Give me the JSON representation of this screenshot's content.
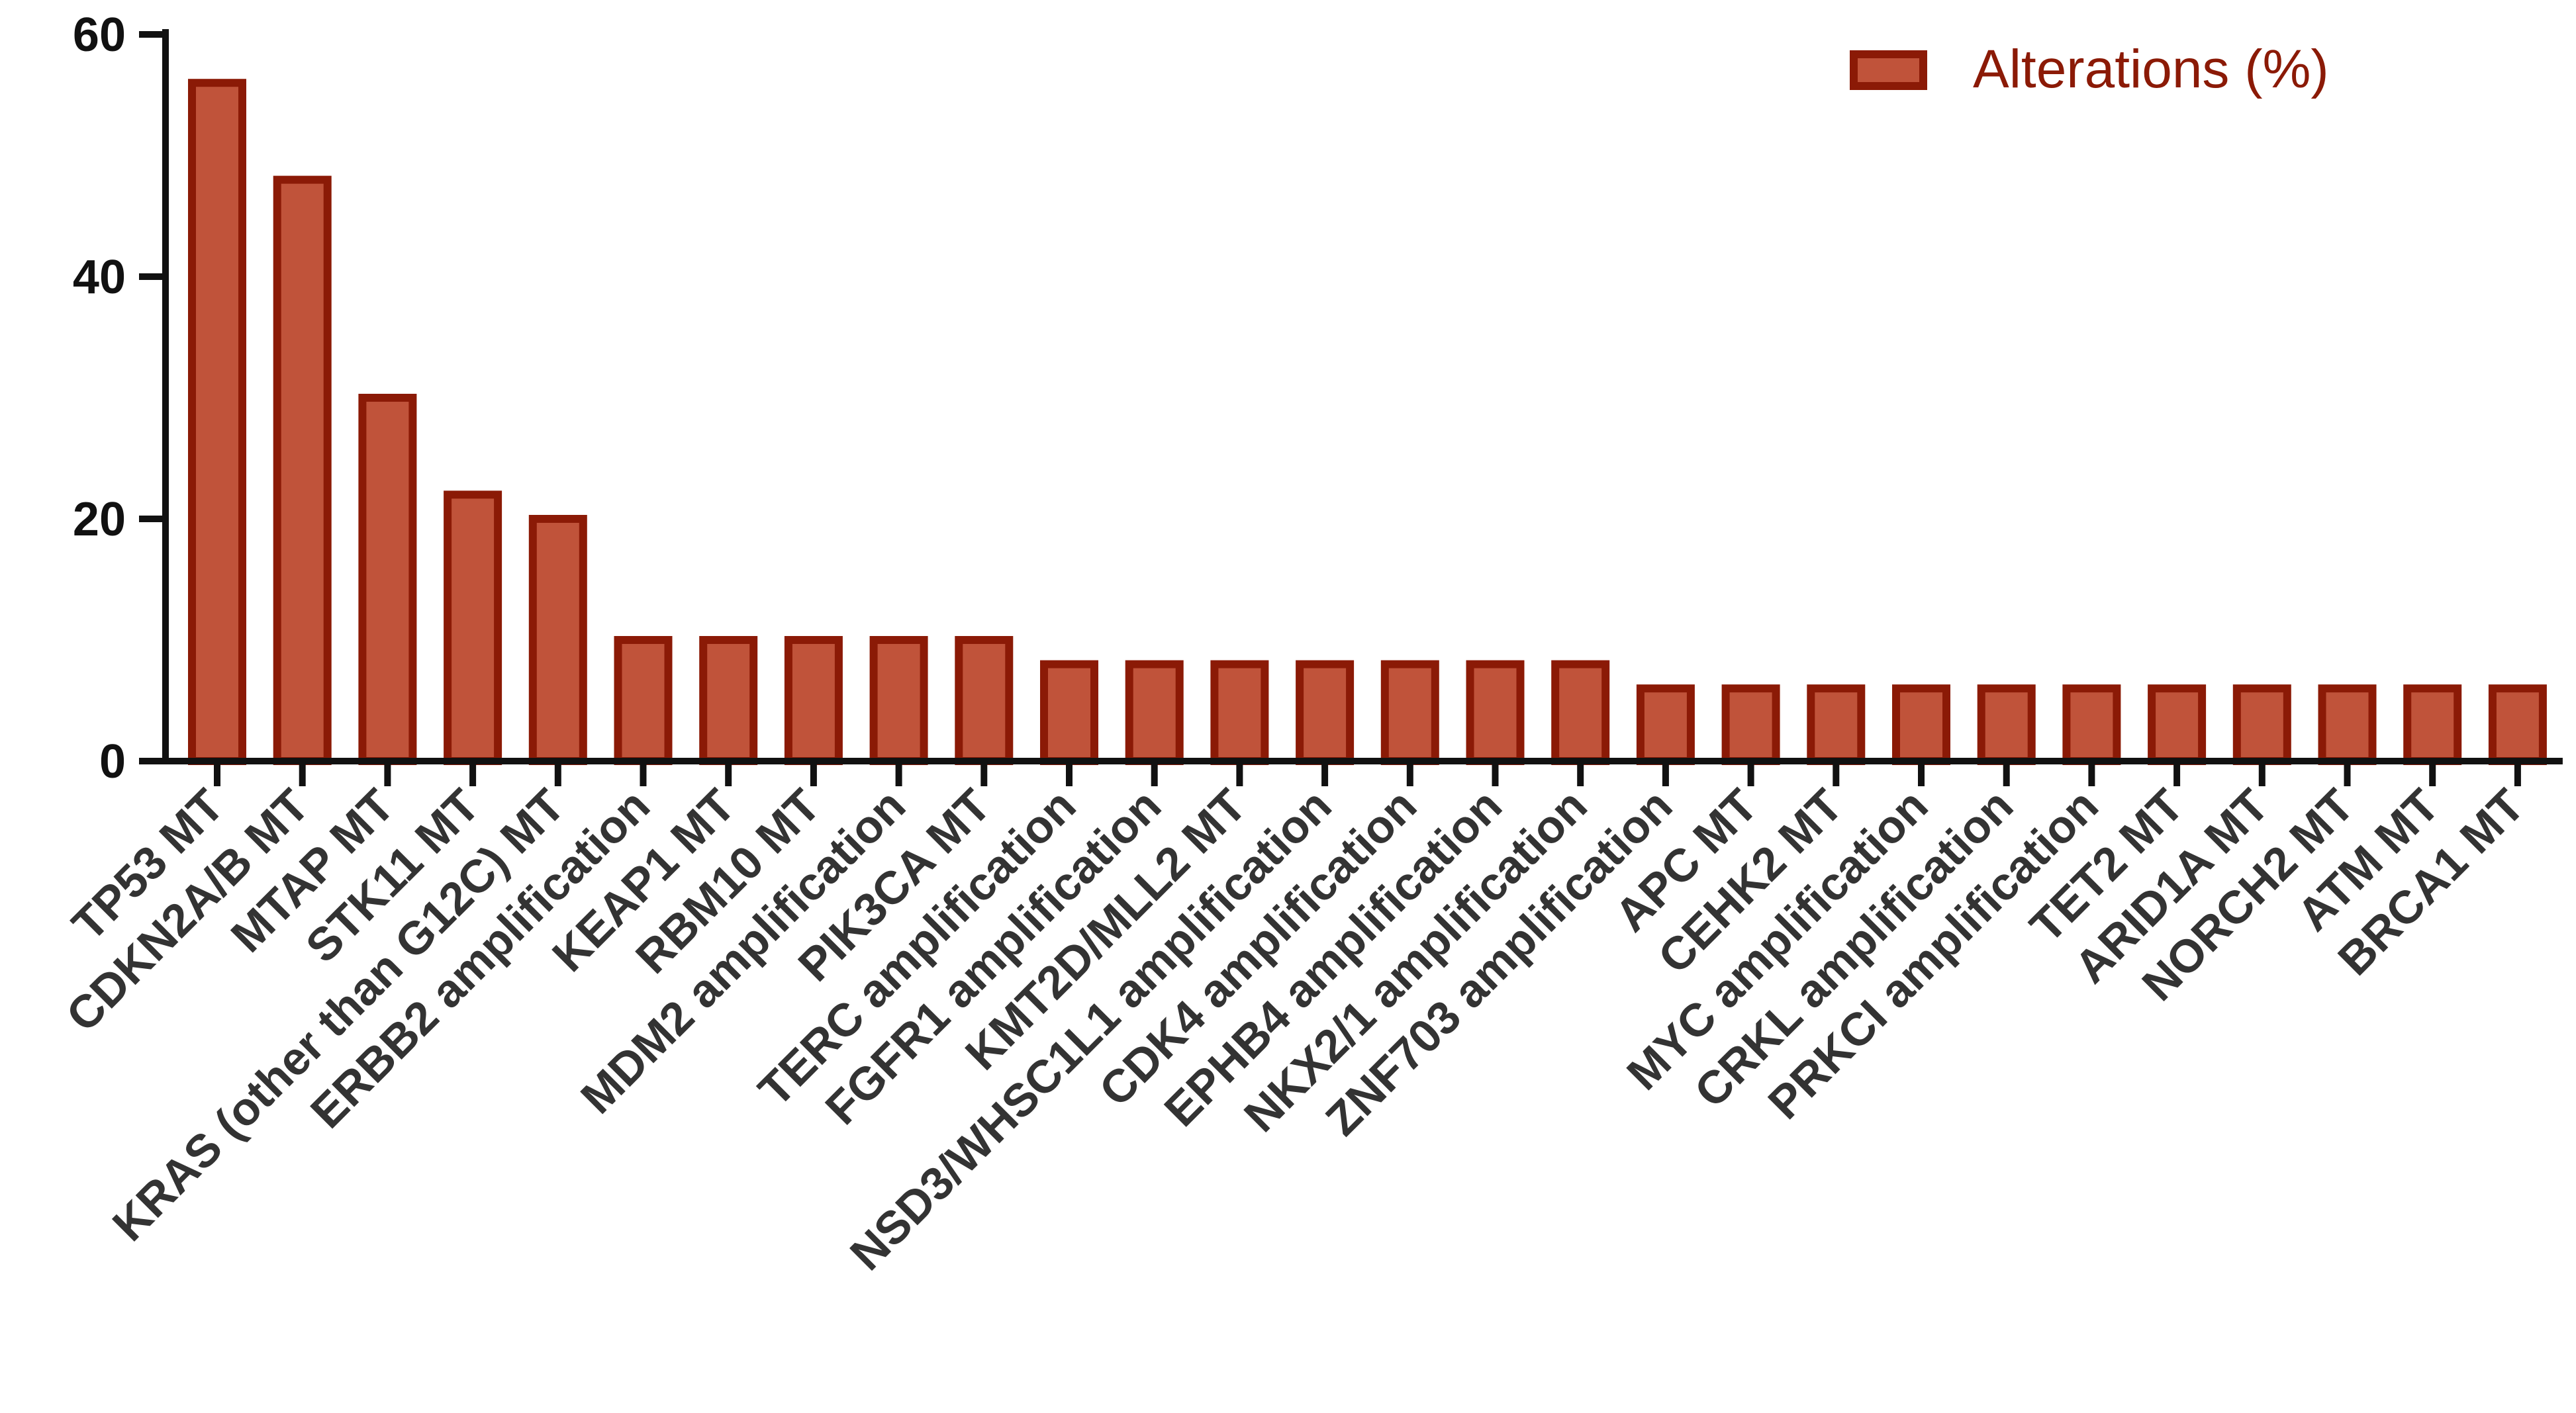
{
  "chart_data": {
    "type": "bar",
    "categories": [
      "TP53 MT",
      "CDKN2A/B MT",
      "MTAP MT",
      "STK11 MT",
      "KRAS (other than G12C) MT",
      "ERBB2 amplification",
      "KEAP1 MT",
      "RBM10 MT",
      "MDM2 amplification",
      "PIK3CA MT",
      "TERC amplification",
      "FGFR1 amplification",
      "KMT2D/MLL2 MT",
      "NSD3/WHSC1L1 amplification",
      "CDK4 amplification",
      "EPHB4 amplification",
      "NKX2/1 amplification",
      "ZNF703 amplification",
      "APC MT",
      "CEHK2 MT",
      "MYC amplification",
      "CRKL amplification",
      "PRKCI amplification",
      "TET2 MT",
      "ARID1A MT",
      "NORCH2 MT",
      "ATM MT",
      "BRCA1 MT"
    ],
    "series": [
      {
        "name": "Alterations (%)",
        "values": [
          56,
          48,
          30,
          22,
          20,
          10,
          10,
          10,
          10,
          10,
          8,
          8,
          8,
          8,
          8,
          8,
          8,
          6,
          6,
          6,
          6,
          6,
          6,
          6,
          6,
          6,
          6,
          6
        ]
      }
    ],
    "ylim": [
      0,
      60
    ],
    "yticks": [
      "0",
      "20",
      "40",
      "60"
    ],
    "grid": false,
    "legend_position": "top-right",
    "colors": {
      "bar_fill": "#c0533a",
      "bar_stroke": "#8b1a06",
      "axis": "#111111"
    }
  }
}
